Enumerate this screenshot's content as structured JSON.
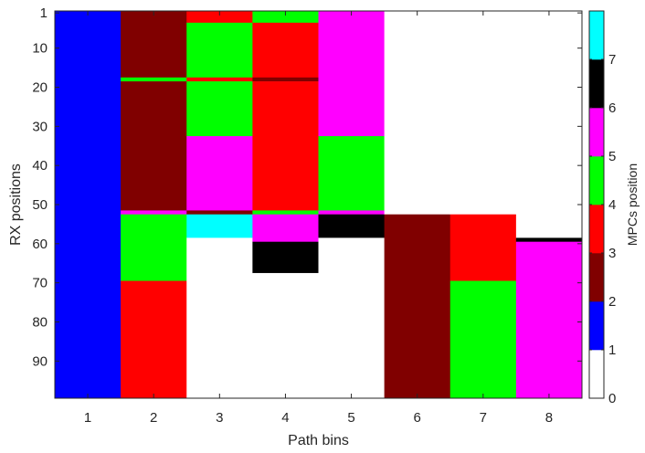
{
  "chart_data": {
    "type": "heatmap",
    "xlabel": "Path bins",
    "ylabel": "RX positions",
    "colorbar_label": "MPCs position",
    "x_categories": [
      "1",
      "2",
      "3",
      "4",
      "5",
      "6",
      "7",
      "8"
    ],
    "y_ticks": [
      1,
      10,
      20,
      30,
      40,
      50,
      60,
      70,
      80,
      90
    ],
    "y_range": [
      1,
      99
    ],
    "colorbar_ticks": [
      0,
      1,
      2,
      3,
      4,
      5,
      6,
      7
    ],
    "colormap": {
      "0": "#ffffff",
      "1": "#0000ff",
      "2": "#800000",
      "3": "#ff0000",
      "4": "#00ff00",
      "5": "#ff00ff",
      "6": "#000000",
      "7": "#00ffff"
    },
    "columns": [
      {
        "bin": "1",
        "segments": [
          {
            "from": 1,
            "to": 99,
            "value": 1
          }
        ]
      },
      {
        "bin": "2",
        "segments": [
          {
            "from": 1,
            "to": 17,
            "value": 2
          },
          {
            "from": 18,
            "to": 18,
            "value": 4
          },
          {
            "from": 19,
            "to": 51,
            "value": 2
          },
          {
            "from": 52,
            "to": 52,
            "value": 5
          },
          {
            "from": 53,
            "to": 69,
            "value": 4
          },
          {
            "from": 70,
            "to": 99,
            "value": 3
          }
        ]
      },
      {
        "bin": "3",
        "segments": [
          {
            "from": 1,
            "to": 3,
            "value": 3
          },
          {
            "from": 4,
            "to": 17,
            "value": 4
          },
          {
            "from": 18,
            "to": 18,
            "value": 3
          },
          {
            "from": 19,
            "to": 32,
            "value": 4
          },
          {
            "from": 33,
            "to": 51,
            "value": 5
          },
          {
            "from": 52,
            "to": 52,
            "value": 2
          },
          {
            "from": 53,
            "to": 58,
            "value": 7
          },
          {
            "from": 59,
            "to": 99,
            "value": 0
          }
        ]
      },
      {
        "bin": "4",
        "segments": [
          {
            "from": 1,
            "to": 3,
            "value": 4
          },
          {
            "from": 4,
            "to": 17,
            "value": 3
          },
          {
            "from": 18,
            "to": 18,
            "value": 2
          },
          {
            "from": 19,
            "to": 51,
            "value": 3
          },
          {
            "from": 52,
            "to": 52,
            "value": 4
          },
          {
            "from": 53,
            "to": 59,
            "value": 5
          },
          {
            "from": 60,
            "to": 67,
            "value": 6
          },
          {
            "from": 68,
            "to": 99,
            "value": 0
          }
        ]
      },
      {
        "bin": "5",
        "segments": [
          {
            "from": 1,
            "to": 32,
            "value": 5
          },
          {
            "from": 33,
            "to": 51,
            "value": 4
          },
          {
            "from": 52,
            "to": 52,
            "value": 5
          },
          {
            "from": 53,
            "to": 58,
            "value": 6
          },
          {
            "from": 59,
            "to": 99,
            "value": 0
          }
        ]
      },
      {
        "bin": "6",
        "segments": [
          {
            "from": 1,
            "to": 52,
            "value": 0
          },
          {
            "from": 53,
            "to": 99,
            "value": 2
          }
        ]
      },
      {
        "bin": "7",
        "segments": [
          {
            "from": 1,
            "to": 52,
            "value": 0
          },
          {
            "from": 53,
            "to": 69,
            "value": 3
          },
          {
            "from": 70,
            "to": 99,
            "value": 4
          }
        ]
      },
      {
        "bin": "8",
        "segments": [
          {
            "from": 1,
            "to": 58,
            "value": 0
          },
          {
            "from": 59,
            "to": 59,
            "value": 6
          },
          {
            "from": 60,
            "to": 99,
            "value": 5
          }
        ]
      }
    ]
  }
}
